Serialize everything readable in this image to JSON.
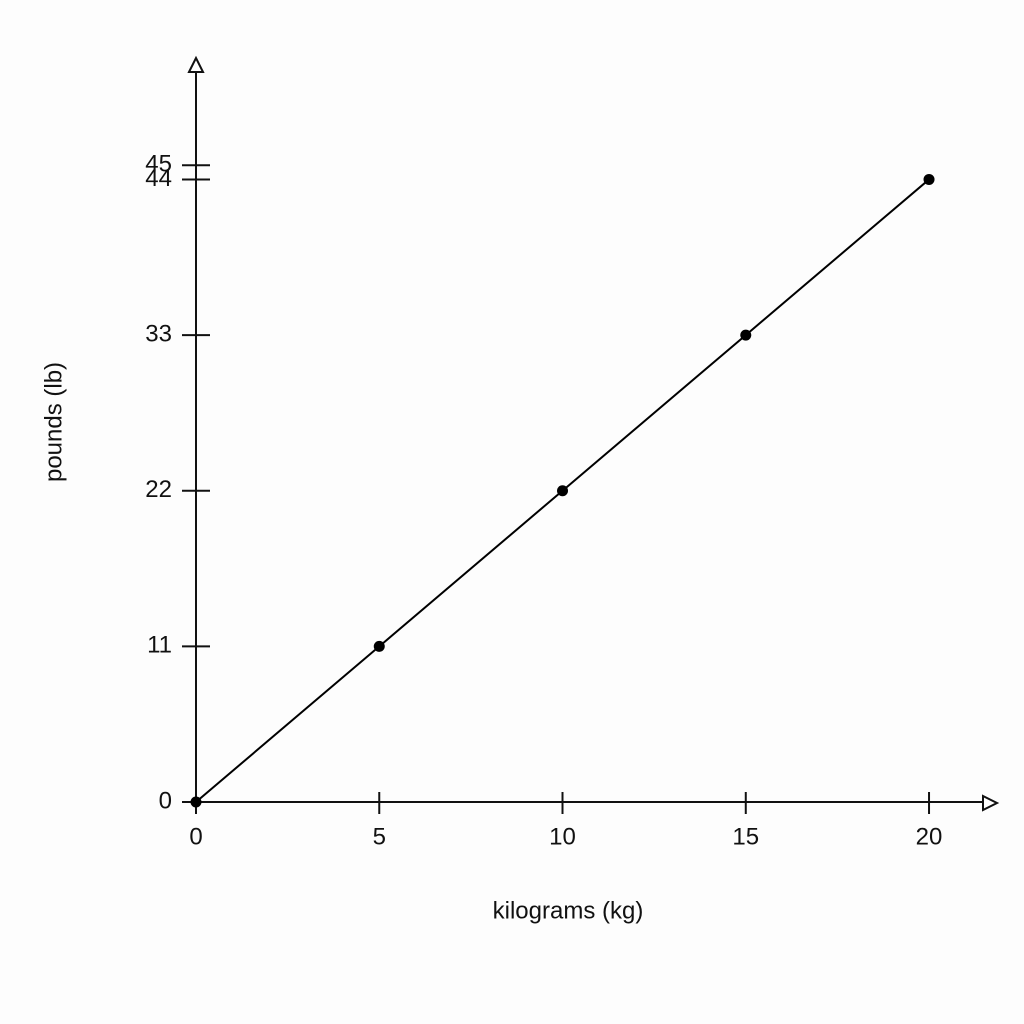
{
  "chart_data": {
    "type": "line",
    "x_label": "kilograms (kg)",
    "y_label": "pounds (lb)",
    "x": [
      0,
      5,
      10,
      15,
      20
    ],
    "values": [
      0,
      11,
      22,
      33,
      44
    ],
    "color": "#000000",
    "xlim": [
      0,
      21.8
    ],
    "xticks": [
      0,
      5,
      10,
      15,
      20
    ],
    "ylim": [
      0,
      52.3
    ],
    "yticks": [
      0,
      11,
      22,
      33,
      44,
      45
    ],
    "grid": false
  }
}
